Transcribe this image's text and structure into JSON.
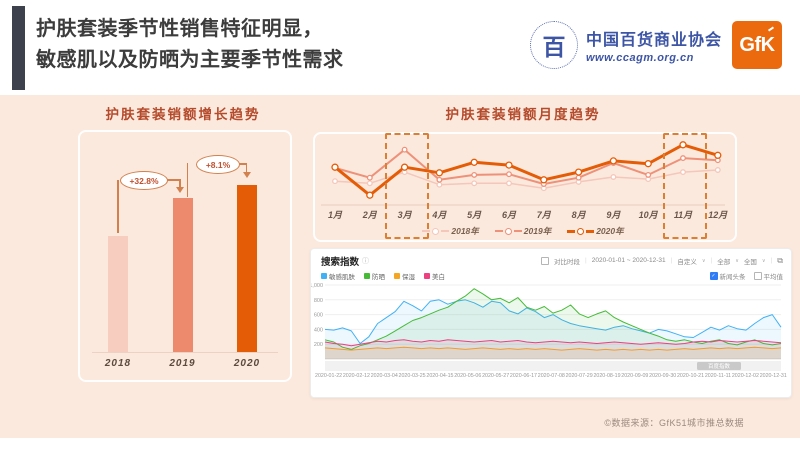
{
  "header": {
    "title_line1": "护肤套装季节性销售特征明显，",
    "title_line2": "敏感肌以及防晒为主要季节性需求"
  },
  "logos": {
    "ccagm": {
      "emblem_glyph": "百",
      "name": "中国百货商业协会",
      "url": "www.ccagm.org.cn"
    },
    "gfk": {
      "text": "GfK"
    }
  },
  "icons": {
    "info": "ⓘ",
    "caret": "∨",
    "export": "⧉",
    "check": "✓"
  },
  "search_panel": {
    "title": "搜索指数",
    "compare_label": "对比时段",
    "date_range": "2020-01-01 ~ 2020-12-31",
    "dd1": "自定义",
    "dd2": "全部",
    "dd3": "全国",
    "news_label": "新闻头条",
    "avg_label": "平均值"
  },
  "footer": {
    "text": "©数据来源：GfK51城市推总数据"
  },
  "chart_data": [
    {
      "id": "growth-bar",
      "type": "bar",
      "title": "护肤套装销额增长趋势",
      "categories": [
        "2018",
        "2019",
        "2020"
      ],
      "values": [
        100,
        132.8,
        143.6
      ],
      "value_note": "indexed sales, 2018 = 100",
      "annotations": [
        {
          "between": [
            "2018",
            "2019"
          ],
          "label": "+32.8%"
        },
        {
          "between": [
            "2019",
            "2020"
          ],
          "label": "+8.1%"
        }
      ],
      "colors": [
        "#f6cdbf",
        "#ed8a6d",
        "#e55c07"
      ],
      "grid": false
    },
    {
      "id": "monthly-line",
      "type": "line",
      "title": "护肤套装销额月度趋势",
      "categories": [
        "1月",
        "2月",
        "3月",
        "4月",
        "5月",
        "6月",
        "7月",
        "8月",
        "9月",
        "10月",
        "11月",
        "12月"
      ],
      "series": [
        {
          "name": "2018年",
          "color": "#f4c7ba",
          "width": 1.5,
          "values": [
            34,
            31,
            47,
            29,
            31,
            31,
            24,
            33,
            40,
            37,
            47,
            50
          ]
        },
        {
          "name": "2019年",
          "color": "#ee9179",
          "width": 2,
          "values": [
            53,
            39,
            79,
            36,
            43,
            44,
            30,
            39,
            60,
            43,
            67,
            64
          ]
        },
        {
          "name": "2020年",
          "color": "#e55c07",
          "width": 3,
          "values": [
            54,
            14,
            54,
            46,
            61,
            57,
            36,
            47,
            63,
            59,
            86,
            71
          ]
        }
      ],
      "highlighted_months": [
        "3月",
        "11月"
      ],
      "ylim": [
        0,
        100
      ],
      "grid": false,
      "legend_position": "bottom"
    },
    {
      "id": "search-index-trend",
      "type": "line",
      "title": "搜索指数",
      "ylim": [
        0,
        1000
      ],
      "y_labels": [
        "1,000",
        "800",
        "600",
        "400",
        "200"
      ],
      "x_labels": [
        "2020-01-22",
        "2020-02-12",
        "2020-03-04",
        "2020-03-25",
        "2020-04-15",
        "2020-05-06",
        "2020-05-27",
        "2020-06-17",
        "2020-07-08",
        "2020-07-29",
        "2020-08-19",
        "2020-09-09",
        "2020-09-30",
        "2020-10-21",
        "2020-11-11",
        "2020-12-02",
        "2020-12-31"
      ],
      "watermark": "百度指数",
      "series": [
        {
          "name": "敏感肌肤",
          "color": "#41b1f5",
          "values": [
            400,
            390,
            420,
            380,
            210,
            300,
            480,
            560,
            640,
            780,
            720,
            650,
            780,
            800,
            740,
            780,
            800,
            760,
            700,
            780,
            760,
            650,
            610,
            690,
            640,
            560,
            600,
            530,
            480,
            450,
            430,
            410,
            390,
            430,
            450,
            410,
            380,
            350,
            400,
            380,
            340,
            300,
            290,
            360,
            430,
            390,
            450,
            410,
            390,
            480,
            560,
            600,
            430
          ]
        },
        {
          "name": "防晒",
          "color": "#45bb36",
          "values": [
            260,
            230,
            160,
            130,
            180,
            210,
            260,
            310,
            380,
            450,
            520,
            560,
            610,
            660,
            700,
            780,
            850,
            950,
            880,
            800,
            820,
            760,
            830,
            700,
            660,
            710,
            620,
            660,
            730,
            610,
            560,
            610,
            650,
            560,
            500,
            450,
            400,
            350,
            310,
            260,
            240,
            260,
            230,
            210,
            240,
            260,
            210,
            190,
            230,
            260,
            210,
            190,
            210
          ]
        },
        {
          "name": "保湿",
          "color": "#f5a623",
          "values": [
            150,
            140,
            130,
            120,
            130,
            140,
            150,
            140,
            150,
            160,
            150,
            140,
            150,
            140,
            150,
            140,
            130,
            140,
            150,
            140,
            130,
            140,
            130,
            140,
            130,
            140,
            130,
            120,
            130,
            140,
            130,
            120,
            130,
            120,
            130,
            120,
            130,
            120,
            130,
            120,
            130,
            140,
            130,
            140,
            150,
            140,
            150,
            140,
            150,
            160,
            150,
            140,
            150
          ]
        },
        {
          "name": "美白",
          "color": "#ee3f80",
          "values": [
            230,
            210,
            200,
            180,
            200,
            220,
            240,
            230,
            250,
            260,
            240,
            230,
            250,
            240,
            260,
            250,
            240,
            230,
            240,
            250,
            230,
            240,
            250,
            230,
            220,
            230,
            240,
            230,
            220,
            230,
            220,
            210,
            220,
            230,
            220,
            210,
            200,
            210,
            220,
            210,
            200,
            210,
            230,
            240,
            230,
            250,
            240,
            230,
            240,
            250,
            240,
            230,
            220
          ]
        }
      ]
    }
  ]
}
